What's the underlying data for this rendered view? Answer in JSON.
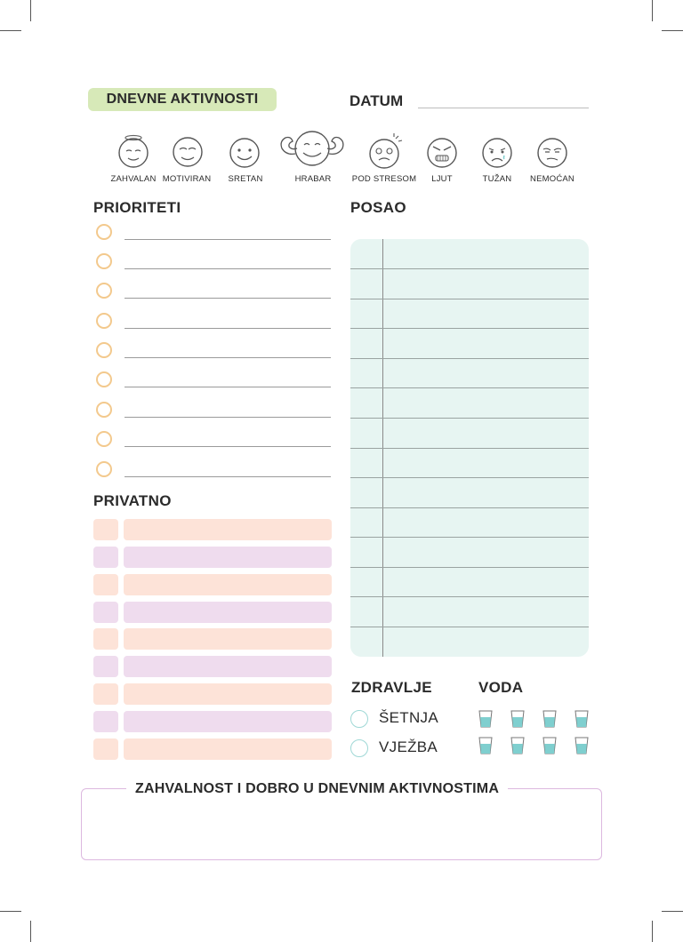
{
  "header": {
    "title": "DNEVNE AKTIVNOSTI",
    "date_label": "DATUM"
  },
  "moods": [
    "ZAHVALAN",
    "MOTIVIRAN",
    "SRETAN",
    "HRABAR",
    "POD STRESOM",
    "LJUT",
    "TUŽAN",
    "NEMOĆAN"
  ],
  "sections": {
    "priorities": "PRIORITETI",
    "work": "POSAO",
    "private": "PRIVATNO",
    "health": "ZDRAVLJE",
    "water": "VODA",
    "gratitude": "ZAHVALNOST I DOBRO U DNEVNIM AKTIVNOSTIMA"
  },
  "health": {
    "walk": "ŠETNJA",
    "exercise": "VJEŽBA"
  },
  "counts": {
    "priority_lines": 9,
    "private_rows": 9,
    "work_lines": 14,
    "water_glasses": 8
  },
  "colors": {
    "title_pill": "#d7e9b8",
    "priority_circle": "#f3c98d",
    "private_peach": "#fde3d8",
    "private_lilac": "#efdcee",
    "work_bg": "#e7f5f2",
    "water": "#7fcfcf",
    "gratitude_border": "#dcb8df"
  }
}
